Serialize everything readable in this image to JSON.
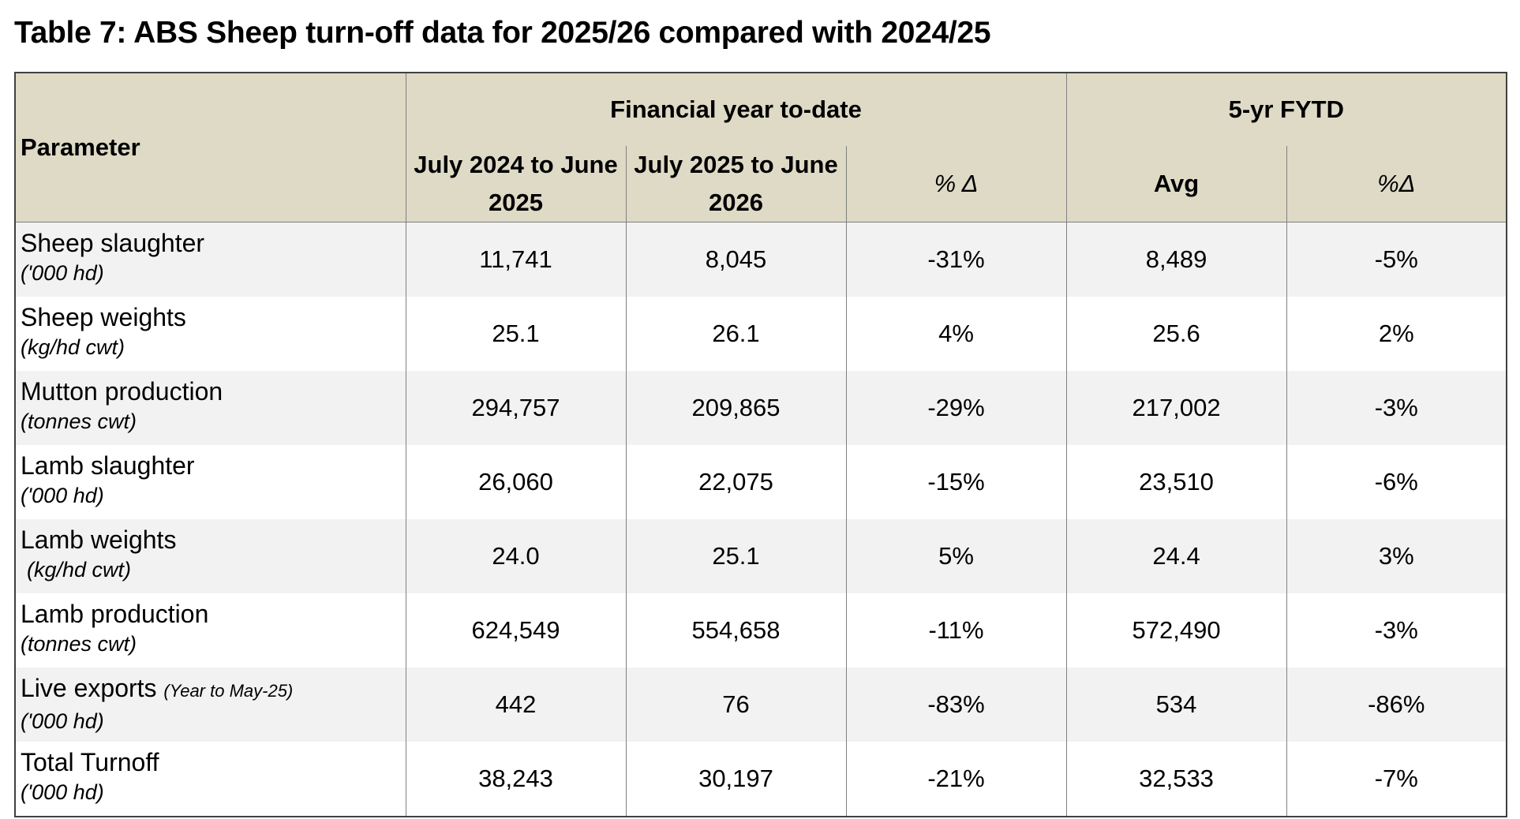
{
  "title": "Table 7: ABS Sheep turn-off data for 2025/26 compared with 2024/25",
  "header": {
    "parameter": "Parameter",
    "group_fy": "Financial year to-date",
    "group_5yr": "5-yr  FYTD",
    "col_2024_line1": "July 2024 to June",
    "col_2024_line2": "2025",
    "col_2025_line1": "July 2025 to June",
    "col_2025_line2": "2026",
    "col_pct": "% Δ",
    "col_avg": "Avg",
    "col_pct5": "%Δ"
  },
  "rows": [
    {
      "name": "Sheep slaughter",
      "note": "",
      "unit": "('000 hd)",
      "v2024": "11,741",
      "v2025": "8,045",
      "pct": "-31%",
      "avg": "8,489",
      "pct5": "-5%"
    },
    {
      "name": "Sheep weights",
      "note": "",
      "unit": "(kg/hd cwt)",
      "v2024": "25.1",
      "v2025": "26.1",
      "pct": "4%",
      "avg": "25.6",
      "pct5": "2%"
    },
    {
      "name": "Mutton production",
      "note": "",
      "unit": "(tonnes cwt)",
      "v2024": "294,757",
      "v2025": "209,865",
      "pct": "-29%",
      "avg": "217,002",
      "pct5": "-3%"
    },
    {
      "name": "Lamb slaughter",
      "note": "",
      "unit": "('000 hd)",
      "v2024": "26,060",
      "v2025": "22,075",
      "pct": "-15%",
      "avg": "23,510",
      "pct5": "-6%"
    },
    {
      "name": "Lamb weights",
      "note": "",
      "unit": "(kg/hd cwt)",
      "v2024": "24.0",
      "v2025": "25.1",
      "pct": "5%",
      "avg": "24.4",
      "pct5": "3%"
    },
    {
      "name": "Lamb production",
      "note": "",
      "unit": "(tonnes cwt)",
      "v2024": "624,549",
      "v2025": "554,658",
      "pct": "-11%",
      "avg": "572,490",
      "pct5": "-3%"
    },
    {
      "name": "Live exports",
      "note": "(Year to May-25)",
      "unit": "('000 hd)",
      "v2024": "442",
      "v2025": "76",
      "pct": "-83%",
      "avg": "534",
      "pct5": "-86%"
    },
    {
      "name": "Total Turnoff",
      "note": "",
      "unit": "('000 hd)",
      "v2024": "38,243",
      "v2025": "30,197",
      "pct": "-21%",
      "avg": "32,533",
      "pct5": "-7%"
    }
  ],
  "colors": {
    "header_bg": "#dedac6",
    "row_alt_bg": "#f2f2f2",
    "border": "#404040"
  }
}
